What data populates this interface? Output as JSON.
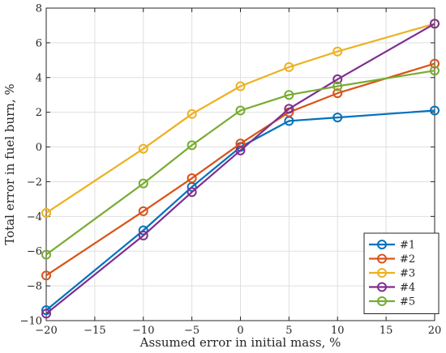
{
  "chart_data": {
    "type": "line",
    "xlabel": "Assumed error in initial mass, %",
    "ylabel": "Total error in fuel burn, %",
    "xlim": [
      -20,
      20
    ],
    "ylim": [
      -10,
      8
    ],
    "xticks": [
      -20,
      -15,
      -10,
      -5,
      0,
      5,
      10,
      15,
      20
    ],
    "yticks": [
      -10,
      -8,
      -6,
      -4,
      -2,
      0,
      2,
      4,
      6,
      8
    ],
    "grid": true,
    "legend_position": "bottom-right",
    "marker": "circle",
    "x": [
      -20,
      -10,
      -5,
      0,
      5,
      10,
      20
    ],
    "series": [
      {
        "name": "#1",
        "color": "#0072BD",
        "values": [
          -9.4,
          -4.8,
          -2.3,
          0.0,
          1.5,
          1.7,
          2.1
        ]
      },
      {
        "name": "#2",
        "color": "#D95319",
        "values": [
          -7.4,
          -3.7,
          -1.8,
          0.2,
          2.0,
          3.1,
          4.8
        ]
      },
      {
        "name": "#3",
        "color": "#EDB120",
        "values": [
          -3.8,
          -0.1,
          1.9,
          3.5,
          4.6,
          5.5,
          7.1
        ]
      },
      {
        "name": "#4",
        "color": "#7E2F8E",
        "values": [
          -9.6,
          -5.1,
          -2.6,
          -0.2,
          2.2,
          3.9,
          7.1
        ]
      },
      {
        "name": "#5",
        "color": "#77AC30",
        "values": [
          -6.2,
          -2.1,
          0.1,
          2.1,
          3.0,
          3.5,
          4.4
        ]
      }
    ]
  }
}
